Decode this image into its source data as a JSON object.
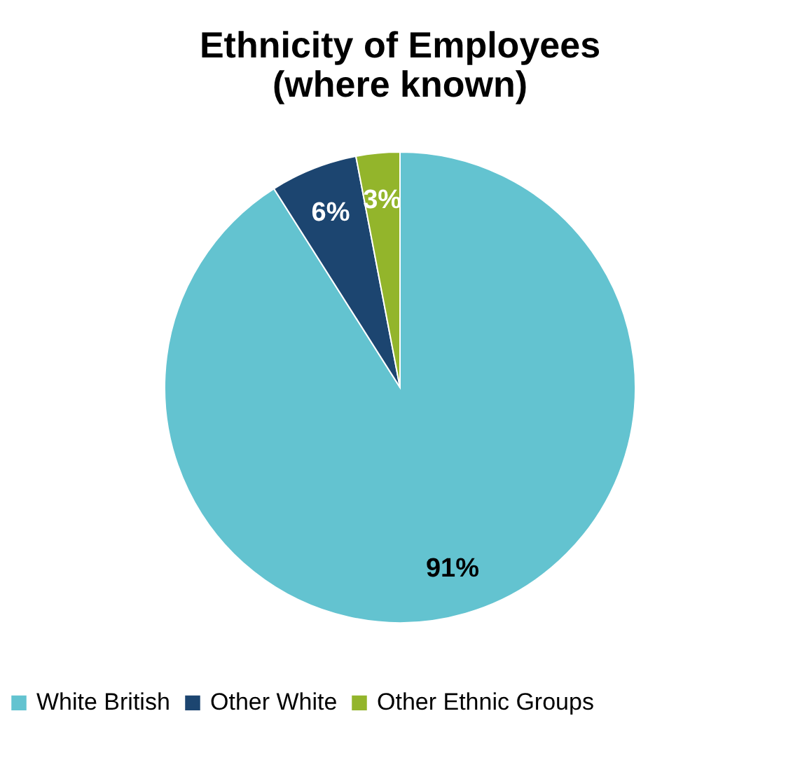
{
  "chart_data": {
    "type": "pie",
    "title": [
      "Ethnicity of Employees",
      "(where known)"
    ],
    "categories": [
      "White British",
      "Other White",
      "Other Ethnic Groups"
    ],
    "values": [
      91,
      6,
      3
    ],
    "colors": [
      "#63c3d0",
      "#1c4570",
      "#93b52b"
    ],
    "value_labels": [
      "91%",
      "6%",
      "3%"
    ],
    "legend": "bottom"
  }
}
